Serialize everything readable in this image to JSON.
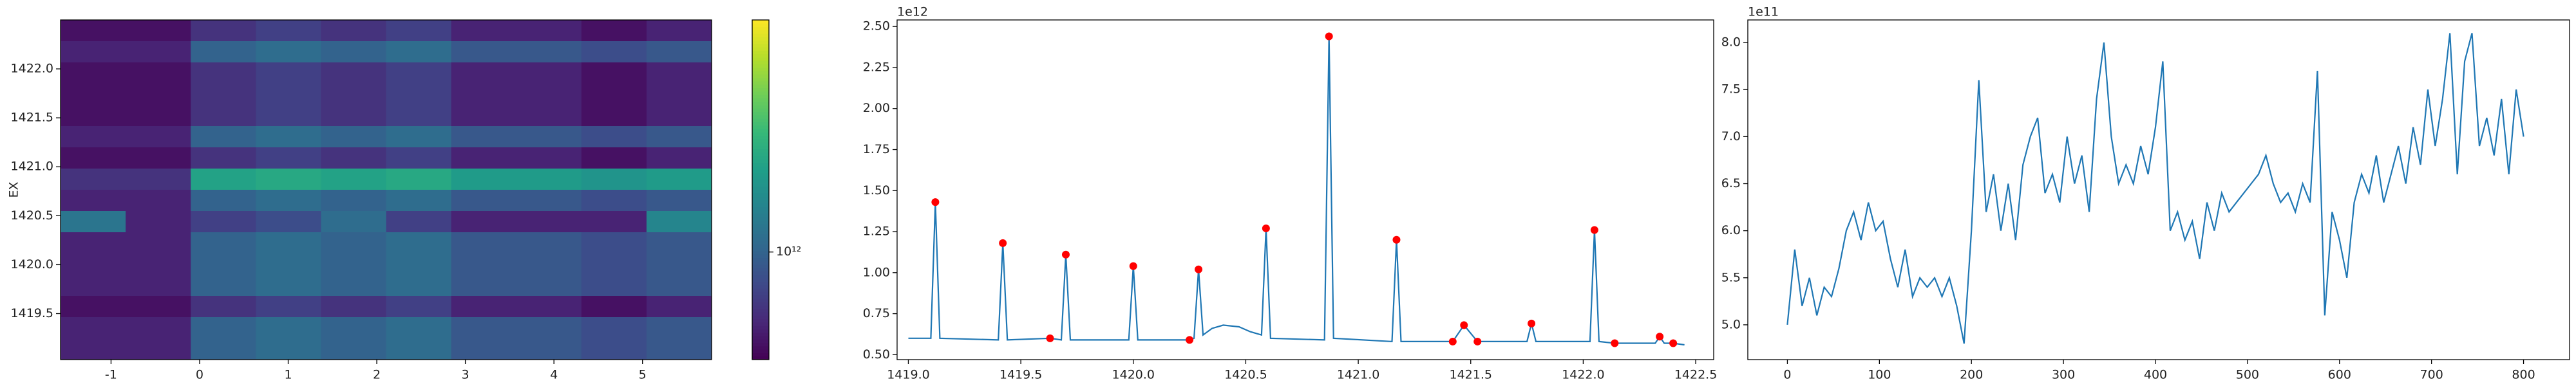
{
  "chart_data": [
    {
      "type": "heatmap",
      "ylabel": "EX",
      "xlim": [
        -1.57,
        5.78
      ],
      "ylim": [
        1419.03,
        1422.5
      ],
      "xticks": [
        -1,
        0,
        1,
        2,
        3,
        4,
        5
      ],
      "yticks": [
        1419.5,
        {
          "value": 1420,
          "label": "1420.0"
        },
        1420.5,
        {
          "value": 1421,
          "label": "1421.0"
        },
        1421.5,
        {
          "value": 1422,
          "label": "1422.0"
        }
      ],
      "colormap": "viridis",
      "clim": [
        660000000000.0,
        2450000000000.0
      ],
      "colorbar_log": true,
      "colorbar_ticks": [
        {
          "value": 1000000000000.0,
          "label": "10¹²"
        }
      ],
      "z": [
        [
          700000000000.0,
          700000000000.0,
          800000000000.0,
          850000000000.0,
          800000000000.0,
          850000000000.0,
          750000000000.0,
          750000000000.0,
          700000000000.0,
          750000000000.0
        ],
        [
          750000000000.0,
          750000000000.0,
          1000000000000.0,
          1050000000000.0,
          1000000000000.0,
          1050000000000.0,
          950000000000.0,
          950000000000.0,
          900000000000.0,
          950000000000.0
        ],
        [
          700000000000.0,
          700000000000.0,
          800000000000.0,
          850000000000.0,
          800000000000.0,
          850000000000.0,
          750000000000.0,
          750000000000.0,
          700000000000.0,
          750000000000.0
        ],
        [
          700000000000.0,
          700000000000.0,
          800000000000.0,
          850000000000.0,
          800000000000.0,
          850000000000.0,
          750000000000.0,
          750000000000.0,
          700000000000.0,
          750000000000.0
        ],
        [
          700000000000.0,
          700000000000.0,
          800000000000.0,
          850000000000.0,
          800000000000.0,
          850000000000.0,
          750000000000.0,
          750000000000.0,
          700000000000.0,
          750000000000.0
        ],
        [
          750000000000.0,
          750000000000.0,
          1000000000000.0,
          1050000000000.0,
          1000000000000.0,
          1050000000000.0,
          950000000000.0,
          950000000000.0,
          900000000000.0,
          950000000000.0
        ],
        [
          700000000000.0,
          700000000000.0,
          800000000000.0,
          850000000000.0,
          800000000000.0,
          850000000000.0,
          750000000000.0,
          750000000000.0,
          700000000000.0,
          750000000000.0
        ],
        [
          800000000000.0,
          800000000000.0,
          1400000000000.0,
          1450000000000.0,
          1400000000000.0,
          1450000000000.0,
          1350000000000.0,
          1350000000000.0,
          1300000000000.0,
          1350000000000.0
        ],
        [
          750000000000.0,
          750000000000.0,
          1000000000000.0,
          1050000000000.0,
          1000000000000.0,
          1050000000000.0,
          950000000000.0,
          950000000000.0,
          900000000000.0,
          950000000000.0
        ],
        [
          1100000000000.0,
          750000000000.0,
          850000000000.0,
          900000000000.0,
          1050000000000.0,
          850000000000.0,
          750000000000.0,
          750000000000.0,
          750000000000.0,
          1200000000000.0
        ],
        [
          750000000000.0,
          750000000000.0,
          1000000000000.0,
          1050000000000.0,
          1000000000000.0,
          1050000000000.0,
          950000000000.0,
          950000000000.0,
          900000000000.0,
          950000000000.0
        ],
        [
          750000000000.0,
          750000000000.0,
          1000000000000.0,
          1050000000000.0,
          1000000000000.0,
          1050000000000.0,
          950000000000.0,
          950000000000.0,
          900000000000.0,
          950000000000.0
        ],
        [
          750000000000.0,
          750000000000.0,
          1000000000000.0,
          1050000000000.0,
          1000000000000.0,
          1050000000000.0,
          950000000000.0,
          950000000000.0,
          900000000000.0,
          950000000000.0
        ],
        [
          700000000000.0,
          700000000000.0,
          800000000000.0,
          850000000000.0,
          800000000000.0,
          850000000000.0,
          750000000000.0,
          750000000000.0,
          700000000000.0,
          750000000000.0
        ],
        [
          750000000000.0,
          750000000000.0,
          1000000000000.0,
          1050000000000.0,
          1000000000000.0,
          1050000000000.0,
          950000000000.0,
          950000000000.0,
          900000000000.0,
          950000000000.0
        ],
        [
          750000000000.0,
          750000000000.0,
          1000000000000.0,
          1050000000000.0,
          1000000000000.0,
          1050000000000.0,
          950000000000.0,
          950000000000.0,
          900000000000.0,
          950000000000.0
        ]
      ]
    },
    {
      "type": "line",
      "offset_text": "1e12",
      "xlim": [
        1418.95,
        1422.58
      ],
      "ylim": [
        470000000000.0,
        2540000000000.0
      ],
      "xticks": [
        {
          "value": 1419,
          "label": "1419.0"
        },
        1419.5,
        {
          "value": 1420,
          "label": "1420.0"
        },
        1420.5,
        {
          "value": 1421,
          "label": "1421.0"
        },
        1421.5,
        {
          "value": 1422,
          "label": "1422.0"
        },
        1422.5
      ],
      "yticks": [
        {
          "value": 500000000000.0,
          "label": "0.50"
        },
        {
          "value": 750000000000.0,
          "label": "0.75"
        },
        {
          "value": 1000000000000.0,
          "label": "1.00"
        },
        {
          "value": 1250000000000.0,
          "label": "1.25"
        },
        {
          "value": 1500000000000.0,
          "label": "1.50"
        },
        {
          "value": 1750000000000.0,
          "label": "1.75"
        },
        {
          "value": 2000000000000.0,
          "label": "2.00"
        },
        {
          "value": 2250000000000.0,
          "label": "2.25"
        },
        {
          "value": 2500000000000.0,
          "label": "2.50"
        }
      ],
      "x": [
        1419.0,
        1419.1,
        1419.12,
        1419.14,
        1419.4,
        1419.42,
        1419.44,
        1419.63,
        1419.68,
        1419.7,
        1419.72,
        1419.98,
        1420.0,
        1420.02,
        1420.25,
        1420.27,
        1420.29,
        1420.31,
        1420.35,
        1420.4,
        1420.47,
        1420.52,
        1420.57,
        1420.59,
        1420.61,
        1420.85,
        1420.87,
        1420.89,
        1421.15,
        1421.17,
        1421.19,
        1421.42,
        1421.47,
        1421.53,
        1421.75,
        1421.77,
        1421.79,
        1422.03,
        1422.05,
        1422.07,
        1422.14,
        1422.32,
        1422.34,
        1422.36,
        1422.4,
        1422.45
      ],
      "series": [
        {
          "color": "#1f77b4",
          "values": [
            600000000000.0,
            600000000000.0,
            1430000000000.0,
            600000000000.0,
            590000000000.0,
            1180000000000.0,
            590000000000.0,
            600000000000.0,
            590000000000.0,
            1110000000000.0,
            590000000000.0,
            590000000000.0,
            1040000000000.0,
            590000000000.0,
            590000000000.0,
            600000000000.0,
            1020000000000.0,
            620000000000.0,
            660000000000.0,
            680000000000.0,
            670000000000.0,
            640000000000.0,
            620000000000.0,
            1270000000000.0,
            600000000000.0,
            590000000000.0,
            2440000000000.0,
            600000000000.0,
            580000000000.0,
            1200000000000.0,
            580000000000.0,
            580000000000.0,
            680000000000.0,
            580000000000.0,
            580000000000.0,
            690000000000.0,
            580000000000.0,
            580000000000.0,
            1260000000000.0,
            580000000000.0,
            570000000000.0,
            570000000000.0,
            610000000000.0,
            570000000000.0,
            570000000000.0,
            560000000000.0
          ]
        }
      ],
      "markers": {
        "color": "#ff0000",
        "x": [
          1419.12,
          1419.42,
          1419.63,
          1419.7,
          1420.0,
          1420.25,
          1420.29,
          1420.59,
          1420.87,
          1421.17,
          1421.42,
          1421.47,
          1421.53,
          1421.77,
          1422.05,
          1422.14,
          1422.34,
          1422.4
        ],
        "values": [
          1430000000000.0,
          1180000000000.0,
          600000000000.0,
          1110000000000.0,
          1040000000000.0,
          590000000000.0,
          1020000000000.0,
          1270000000000.0,
          2440000000000.0,
          1200000000000.0,
          580000000000.0,
          680000000000.0,
          580000000000.0,
          690000000000.0,
          1260000000000.0,
          570000000000.0,
          610000000000.0,
          570000000000.0
        ]
      }
    },
    {
      "type": "line",
      "offset_text": "1e11",
      "xlim": [
        -43,
        850
      ],
      "ylim": [
        463000000000.0,
        824000000000.0
      ],
      "xticks": [
        0,
        100,
        200,
        300,
        400,
        500,
        600,
        700,
        800
      ],
      "yticks": [
        {
          "value": 500000000000.0,
          "label": "5.0"
        },
        {
          "value": 550000000000.0,
          "label": "5.5"
        },
        {
          "value": 600000000000.0,
          "label": "6.0"
        },
        {
          "value": 650000000000.0,
          "label": "6.5"
        },
        {
          "value": 700000000000.0,
          "label": "7.0"
        },
        {
          "value": 750000000000.0,
          "label": "7.5"
        },
        {
          "value": 800000000000.0,
          "label": "8.0"
        }
      ],
      "x": [
        0,
        8,
        16,
        24,
        32,
        40,
        48,
        56,
        64,
        72,
        80,
        88,
        96,
        104,
        112,
        120,
        128,
        136,
        144,
        152,
        160,
        168,
        176,
        184,
        192,
        200,
        208,
        216,
        224,
        232,
        240,
        248,
        256,
        264,
        272,
        280,
        288,
        296,
        304,
        312,
        320,
        328,
        336,
        344,
        352,
        360,
        368,
        376,
        384,
        392,
        400,
        408,
        416,
        424,
        432,
        440,
        448,
        456,
        464,
        472,
        480,
        488,
        496,
        504,
        512,
        520,
        528,
        536,
        544,
        552,
        560,
        568,
        576,
        584,
        592,
        600,
        608,
        616,
        624,
        632,
        640,
        648,
        656,
        664,
        672,
        680,
        688,
        696,
        704,
        712,
        720,
        728,
        736,
        744,
        752,
        760,
        768,
        776,
        784,
        792,
        800
      ],
      "series": [
        {
          "color": "#1f77b4",
          "values": [
            500000000000.0,
            580000000000.0,
            520000000000.0,
            550000000000.0,
            510000000000.0,
            540000000000.0,
            530000000000.0,
            560000000000.0,
            600000000000.0,
            620000000000.0,
            590000000000.0,
            630000000000.0,
            600000000000.0,
            610000000000.0,
            570000000000.0,
            540000000000.0,
            580000000000.0,
            530000000000.0,
            550000000000.0,
            540000000000.0,
            550000000000.0,
            530000000000.0,
            550000000000.0,
            520000000000.0,
            480000000000.0,
            600000000000.0,
            760000000000.0,
            620000000000.0,
            660000000000.0,
            600000000000.0,
            650000000000.0,
            590000000000.0,
            670000000000.0,
            700000000000.0,
            720000000000.0,
            640000000000.0,
            660000000000.0,
            630000000000.0,
            700000000000.0,
            650000000000.0,
            680000000000.0,
            620000000000.0,
            740000000000.0,
            800000000000.0,
            700000000000.0,
            650000000000.0,
            670000000000.0,
            650000000000.0,
            690000000000.0,
            660000000000.0,
            710000000000.0,
            780000000000.0,
            600000000000.0,
            620000000000.0,
            590000000000.0,
            610000000000.0,
            570000000000.0,
            630000000000.0,
            600000000000.0,
            640000000000.0,
            620000000000.0,
            630000000000.0,
            640000000000.0,
            650000000000.0,
            660000000000.0,
            680000000000.0,
            650000000000.0,
            630000000000.0,
            640000000000.0,
            620000000000.0,
            650000000000.0,
            630000000000.0,
            770000000000.0,
            510000000000.0,
            620000000000.0,
            590000000000.0,
            550000000000.0,
            630000000000.0,
            660000000000.0,
            640000000000.0,
            680000000000.0,
            630000000000.0,
            660000000000.0,
            690000000000.0,
            650000000000.0,
            710000000000.0,
            670000000000.0,
            750000000000.0,
            690000000000.0,
            740000000000.0,
            810000000000.0,
            660000000000.0,
            780000000000.0,
            810000000000.0,
            690000000000.0,
            720000000000.0,
            680000000000.0,
            740000000000.0,
            660000000000.0,
            750000000000.0,
            700000000000.0
          ]
        }
      ]
    }
  ]
}
